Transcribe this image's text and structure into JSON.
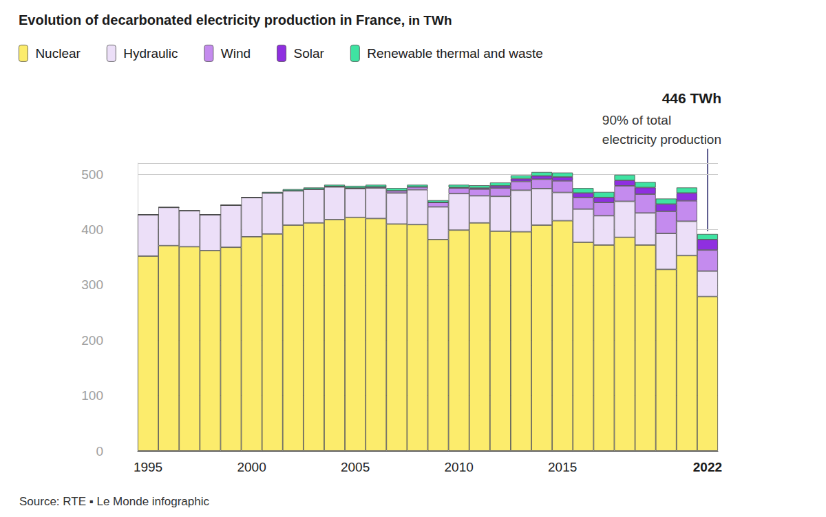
{
  "chart_data": {
    "type": "bar",
    "title": "Evolution of decarbonated electricity production in France,",
    "subtitle": "in TWh",
    "categories": [
      "1995",
      null,
      null,
      null,
      null,
      "2000",
      null,
      null,
      null,
      null,
      "2005",
      null,
      null,
      null,
      null,
      "2010",
      null,
      null,
      null,
      null,
      "2015",
      null,
      null,
      null,
      null,
      null,
      null,
      "2022"
    ],
    "series": [
      {
        "name": "Nuclear",
        "color": "#fcec6c",
        "values": [
          352,
          371,
          369,
          362,
          368,
          387,
          392,
          408,
          412,
          418,
          422,
          420,
          410,
          409,
          382,
          399,
          412,
          397,
          396,
          408,
          416,
          377,
          372,
          386,
          372,
          328,
          353,
          279
        ]
      },
      {
        "name": "Hydraulic",
        "color": "#ecdff8",
        "values": [
          75,
          69,
          65,
          65,
          76,
          71,
          74,
          62,
          61,
          59,
          52,
          55,
          56,
          63,
          59,
          66,
          49,
          63,
          75,
          66,
          51,
          60,
          53,
          65,
          58,
          65,
          62,
          46
        ]
      },
      {
        "name": "Wind",
        "color": "#c48bee",
        "values": [
          0,
          0,
          0,
          0,
          0,
          0,
          0,
          0,
          0,
          1,
          1,
          2,
          4,
          5,
          8,
          10,
          12,
          15,
          16,
          17,
          21,
          21,
          24,
          28,
          34,
          40,
          37,
          38
        ]
      },
      {
        "name": "Solar",
        "color": "#8f2fe0",
        "values": [
          0,
          0,
          0,
          0,
          0,
          0,
          0,
          0,
          0,
          0,
          0,
          0,
          0,
          0,
          0,
          1,
          2,
          4,
          5,
          6,
          7,
          8,
          9,
          10,
          12,
          13,
          14,
          19
        ]
      },
      {
        "name": "Renewable thermal and waste",
        "color": "#3fe3a2",
        "values": [
          0,
          0,
          0,
          0,
          0,
          0,
          2,
          3,
          3,
          3,
          4,
          4,
          5,
          4,
          4,
          5,
          5,
          6,
          6,
          7,
          8,
          9,
          10,
          10,
          10,
          10,
          10,
          10
        ]
      }
    ],
    "ylim": [
      0,
      520
    ],
    "yticks": [
      0,
      100,
      200,
      300,
      400,
      500
    ],
    "grid": true,
    "stacked": true,
    "legend": "top-left",
    "annotation": {
      "title": "446 TWh",
      "text": "90% of total\nelectricity production"
    },
    "source": "Source: RTE ▪ Le Monde infographic"
  }
}
